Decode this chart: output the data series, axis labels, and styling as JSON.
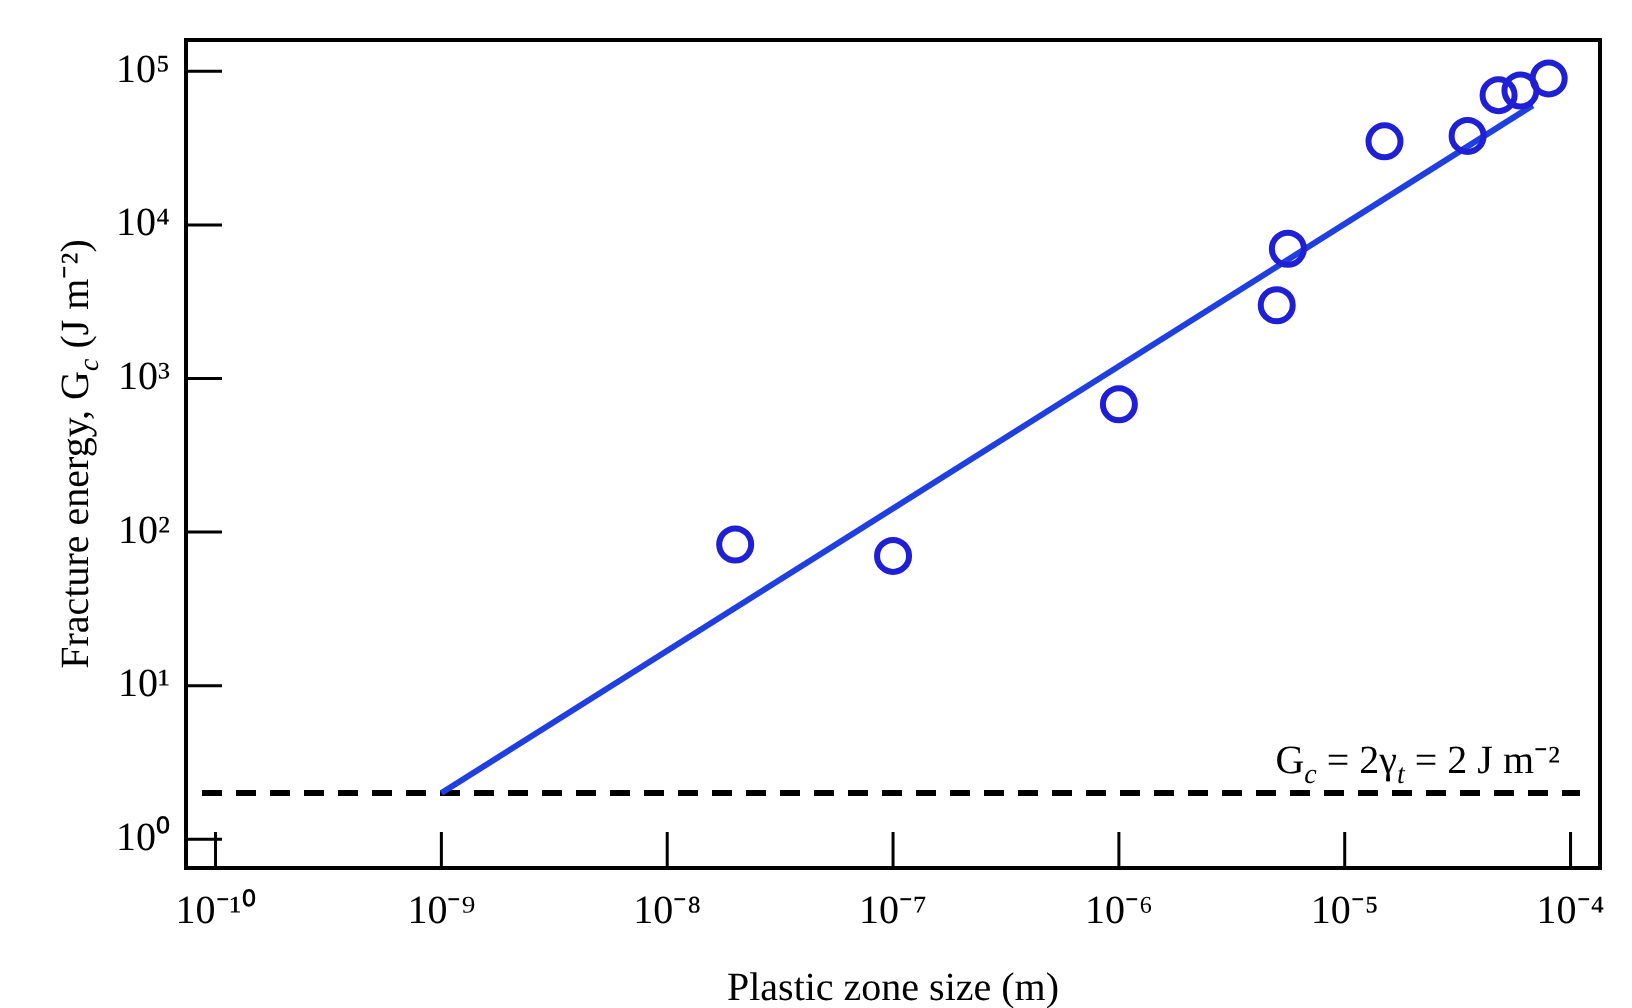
{
  "chart_data": {
    "type": "scatter",
    "xlabel": "Plastic zone size (m)",
    "ylabel": "Fracture energy, G$_{c}$ (J m⁻²)",
    "log": "xy",
    "grid": false,
    "legend": false,
    "marker": "circle",
    "xlim": [
      7.4e-11,
      0.000135
    ],
    "ylim": [
      0.65,
      160000
    ],
    "xticks": [
      {
        "value": 1e-10,
        "label": "10⁻¹⁰"
      },
      {
        "value": 1e-09,
        "label": "10⁻⁹"
      },
      {
        "value": 1e-08,
        "label": "10⁻⁸"
      },
      {
        "value": 1e-07,
        "label": "10⁻⁷"
      },
      {
        "value": 1e-06,
        "label": "10⁻⁶"
      },
      {
        "value": 1e-05,
        "label": "10⁻⁵"
      },
      {
        "value": 0.0001,
        "label": "10⁻⁴"
      }
    ],
    "yticks": [
      {
        "value": 1,
        "label": "10⁰"
      },
      {
        "value": 10,
        "label": "10¹"
      },
      {
        "value": 100,
        "label": "10²"
      },
      {
        "value": 1000,
        "label": "10³"
      },
      {
        "value": 10000,
        "label": "10⁴"
      },
      {
        "value": 100000,
        "label": "10⁵"
      }
    ],
    "series": [
      {
        "color": "#1f1fd6",
        "x": [
          2e-08,
          1e-07,
          1e-06,
          5e-06,
          5.6e-06,
          1.5e-05,
          3.5e-05,
          4.8e-05,
          6e-05,
          8e-05
        ],
        "values": [
          83,
          70,
          680,
          3000,
          7000,
          35000,
          38000,
          70000,
          75000,
          90000
        ]
      },
      {
        "type": "line",
        "color": "#1f3fe0",
        "marker": "none",
        "x": [
          1e-09,
          6.8e-05
        ],
        "values": [
          2,
          60000
        ]
      }
    ],
    "ref_lines": [
      {
        "axis": "y",
        "value": 2,
        "label": "G$_{c}$ = 2γ$_{t}$ = 2 J m⁻²",
        "color": "#000000",
        "line_style": "dashed"
      }
    ]
  }
}
